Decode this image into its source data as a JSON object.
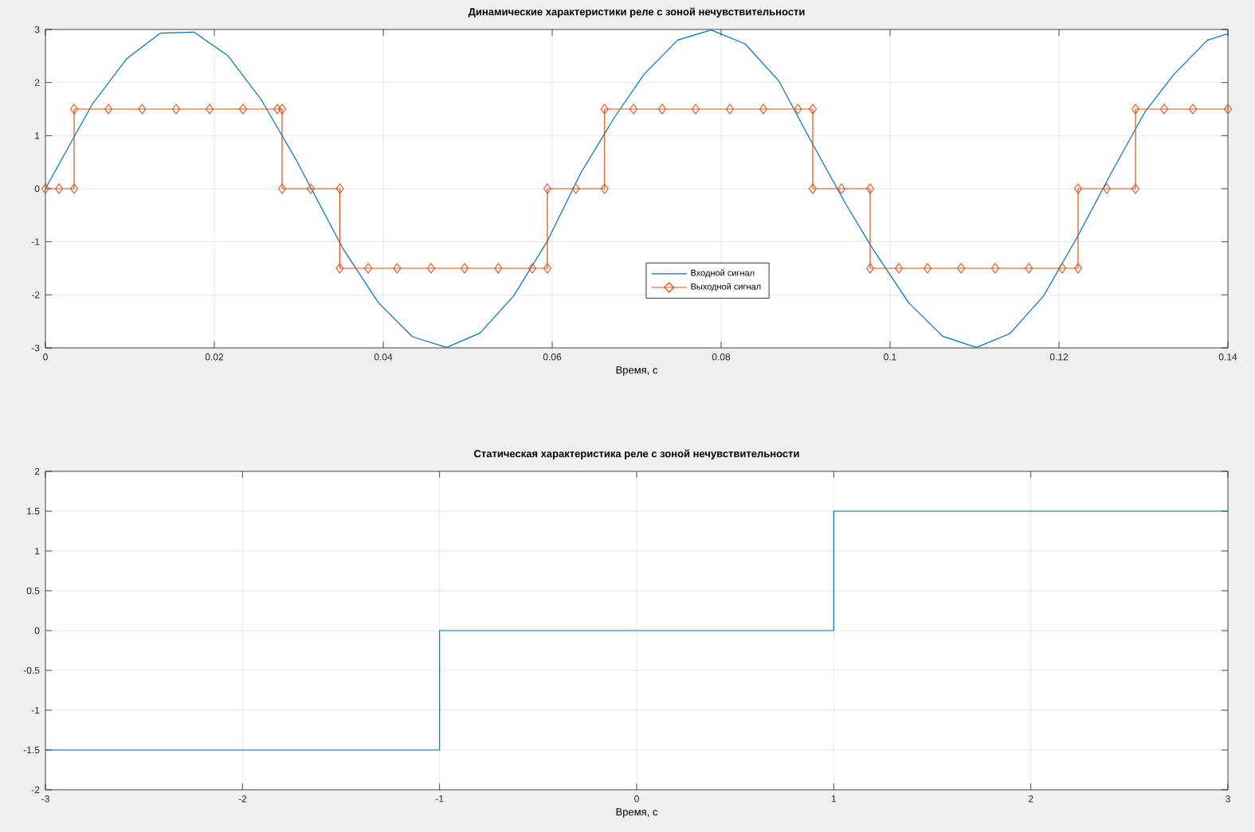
{
  "chart_data": [
    {
      "type": "line",
      "title": "Динамические характеристики реле с зоной нечувствительности",
      "xlabel": "Время, с",
      "xlim": [
        0,
        0.14
      ],
      "ylim": [
        -3,
        3
      ],
      "xticks": [
        0,
        0.02,
        0.04,
        0.06,
        0.08,
        0.1,
        0.12,
        0.14
      ],
      "yticks": [
        -3,
        -2,
        -1,
        0,
        1,
        2,
        3
      ],
      "grid": true,
      "legend": "bottom",
      "line_style": "solid",
      "series": [
        {
          "name": "Входной сигнал",
          "color": "#0072bd",
          "marker": "none",
          "x": [
            0,
            0.00554,
            0.00963,
            0.01359,
            0.01758,
            0.02158,
            0.02554,
            0.02966,
            0.03523,
            0.03944,
            0.04346,
            0.04749,
            0.05145,
            0.05544,
            0.05938,
            0.0634,
            0.0674,
            0.07085,
            0.07485,
            0.07881,
            0.08283,
            0.08683,
            0.0908,
            0.0948,
            0.0979,
            0.10221,
            0.10623,
            0.11023,
            0.11419,
            0.11818,
            0.1222,
            0.1262,
            0.1302,
            0.13358,
            0.13758,
            0.14
          ],
          "values": [
            0,
            1.59,
            2.45,
            2.93,
            2.95,
            2.51,
            1.68,
            0.55,
            -1.13,
            -2.15,
            -2.79,
            -2.99,
            -2.72,
            -2.02,
            -1.0,
            0.3,
            1.35,
            2.15,
            2.8,
            2.99,
            2.73,
            2.03,
            0.85,
            -0.3,
            -1.12,
            -2.15,
            -2.78,
            -2.99,
            -2.73,
            -2.02,
            -0.9,
            0.3,
            1.45,
            2.15,
            2.8,
            2.92
          ]
        },
        {
          "name": "Выходной сигнал",
          "color": "#d95319",
          "marker": "diamond",
          "x": [
            0,
            0.00161,
            0.0034,
            0.0034,
            0.00746,
            0.01145,
            0.01547,
            0.01944,
            0.0234,
            0.02746,
            0.02802,
            0.02802,
            0.03142,
            0.03485,
            0.03485,
            0.03821,
            0.04164,
            0.04566,
            0.04962,
            0.05362,
            0.05764,
            0.05943,
            0.05943,
            0.0628,
            0.0662,
            0.0662,
            0.06962,
            0.07302,
            0.07698,
            0.08104,
            0.085,
            0.08909,
            0.09085,
            0.09085,
            0.09425,
            0.09764,
            0.09764,
            0.10104,
            0.10443,
            0.1084,
            0.11245,
            0.11642,
            0.12038,
            0.12226,
            0.12226,
            0.12566,
            0.12906,
            0.12906,
            0.13245,
            0.13585,
            0.14
          ],
          "values": [
            0,
            0,
            0,
            1.5,
            1.5,
            1.5,
            1.5,
            1.5,
            1.5,
            1.5,
            1.5,
            0,
            0,
            0,
            -1.5,
            -1.5,
            -1.5,
            -1.5,
            -1.5,
            -1.5,
            -1.5,
            -1.5,
            0,
            0,
            0,
            1.5,
            1.5,
            1.5,
            1.5,
            1.5,
            1.5,
            1.5,
            1.5,
            0,
            0,
            0,
            -1.5,
            -1.5,
            -1.5,
            -1.5,
            -1.5,
            -1.5,
            -1.5,
            -1.5,
            0,
            0,
            0,
            1.5,
            1.5,
            1.5,
            1.5
          ]
        }
      ]
    },
    {
      "type": "line",
      "title": "Статическая характеристика реле с зоной нечувствительности",
      "xlabel": "Время, с",
      "xlim": [
        -3,
        3
      ],
      "ylim": [
        -2,
        2
      ],
      "xticks": [
        -3,
        -2,
        -1,
        0,
        1,
        2,
        3
      ],
      "yticks": [
        -2,
        -1.5,
        -1,
        -0.5,
        0,
        0.5,
        1,
        1.5,
        2
      ],
      "grid": true,
      "line_style": "solid",
      "series": [
        {
          "color": "#0072bd",
          "marker": "none",
          "x": [
            -3,
            -1,
            -1,
            1,
            1,
            3
          ],
          "values": [
            -1.5,
            -1.5,
            0,
            0,
            1.5,
            1.5
          ]
        }
      ]
    }
  ]
}
